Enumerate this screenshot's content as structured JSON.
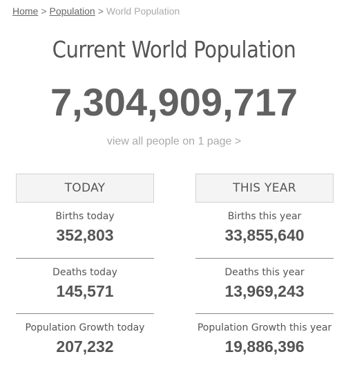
{
  "breadcrumb": {
    "home": "Home",
    "separator": ">",
    "population": "Population",
    "current": "World Population"
  },
  "title": "Current World Population",
  "world_population": "7,304,909,717",
  "view_all": "view all people on 1 page >",
  "today": {
    "header": "TODAY",
    "births_label": "Births today",
    "births_value": "352,803",
    "deaths_label": "Deaths today",
    "deaths_value": "145,571",
    "growth_label": "Population Growth today",
    "growth_value": "207,232"
  },
  "this_year": {
    "header": "THIS YEAR",
    "births_label": "Births this year",
    "births_value": "33,855,640",
    "deaths_label": "Deaths this year",
    "deaths_value": "13,969,243",
    "growth_label": "Population Growth this year",
    "growth_value": "19,886,396"
  }
}
